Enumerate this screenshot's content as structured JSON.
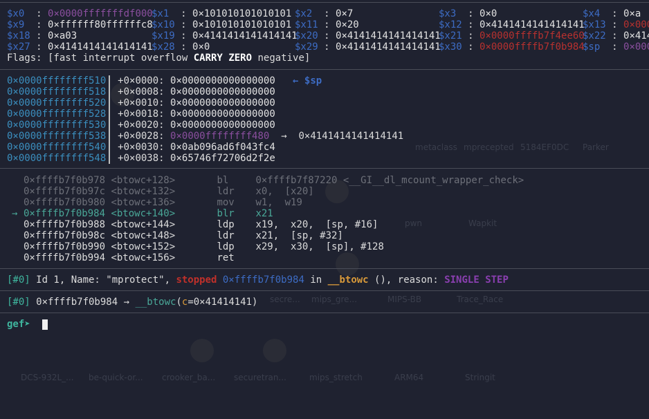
{
  "background_labels": [
    "metaclass",
    "mprecepted",
    "5184EF0DC",
    "Parker",
    "pwn",
    "Wapkit",
    "secre...",
    "mips_gre...",
    "MIPS-BB",
    "Trace_Race",
    "DCS-932L_...",
    "be-quick-or...",
    "crooker_ba...",
    "securetran...",
    "mips_stretch",
    "ARM64",
    "Stringit"
  ],
  "registers": [
    [
      {
        "name": "$x0",
        "value": "0×0000fffffffdf000",
        "color": "purple"
      },
      {
        "name": "$x1",
        "value": "0×101010101010101",
        "color": "white"
      },
      {
        "name": "$x2",
        "value": "0×7",
        "color": "white"
      },
      {
        "name": "$x3",
        "value": "0×0",
        "color": "white"
      },
      {
        "name": "$x4",
        "value": "0×a",
        "color": "white"
      }
    ],
    [
      {
        "name": "$x9",
        "value": "0×ffffff80ffffffc8",
        "color": "white"
      },
      {
        "name": "$x10",
        "value": "0×101010101010101",
        "color": "white"
      },
      {
        "name": "$x11",
        "value": "0×20",
        "color": "white"
      },
      {
        "name": "$x12",
        "value": "0×4141414141414141",
        "color": "white"
      },
      {
        "name": "$x13",
        "value": "0×000",
        "color": "red"
      }
    ],
    [
      {
        "name": "$x18",
        "value": "0×a03",
        "color": "white"
      },
      {
        "name": "$x19",
        "value": "0×4141414141414141",
        "color": "white"
      },
      {
        "name": "$x20",
        "value": "0×4141414141414141",
        "color": "white"
      },
      {
        "name": "$x21",
        "value": "0×0000ffffb7f4ee60",
        "color": "red"
      },
      {
        "name": "$x22",
        "value": "0×414",
        "color": "white"
      }
    ],
    [
      {
        "name": "$x27",
        "value": "0×4141414141414141",
        "color": "white"
      },
      {
        "name": "$x28",
        "value": "0×0",
        "color": "white"
      },
      {
        "name": "$x29",
        "value": "0×4141414141414141",
        "color": "white"
      },
      {
        "name": "$x30",
        "value": "0×0000ffffb7f0b984",
        "color": "red"
      },
      {
        "name": "$sp",
        "value": "0×000",
        "color": "purple"
      }
    ]
  ],
  "flags": {
    "prefix": "Flags: [fast interrupt overflow ",
    "carry": "CARRY",
    "zero": "ZERO",
    "suffix": " negative]"
  },
  "stack": [
    {
      "addr": "0×0000ffffffff510",
      "offset": "+0×0000:",
      "value": "0×0000000000000000",
      "value_color": "white",
      "annotation": "← $sp",
      "deref": ""
    },
    {
      "addr": "0×0000ffffffff518",
      "offset": "+0×0008:",
      "value": "0×0000000000000000",
      "value_color": "white",
      "annotation": "",
      "deref": ""
    },
    {
      "addr": "0×0000ffffffff520",
      "offset": "+0×0010:",
      "value": "0×0000000000000000",
      "value_color": "white",
      "annotation": "",
      "deref": ""
    },
    {
      "addr": "0×0000ffffffff528",
      "offset": "+0×0018:",
      "value": "0×0000000000000000",
      "value_color": "white",
      "annotation": "",
      "deref": ""
    },
    {
      "addr": "0×0000ffffffff530",
      "offset": "+0×0020:",
      "value": "0×0000000000000000",
      "value_color": "white",
      "annotation": "",
      "deref": ""
    },
    {
      "addr": "0×0000ffffffff538",
      "offset": "+0×0028:",
      "value": "0×0000ffffffff480",
      "value_color": "purple",
      "annotation": "",
      "deref": "→  0×4141414141414141"
    },
    {
      "addr": "0×0000ffffffff540",
      "offset": "+0×0030:",
      "value": "0×0ab096ad6f043fc4",
      "value_color": "white",
      "annotation": "",
      "deref": ""
    },
    {
      "addr": "0×0000ffffffff548",
      "offset": "+0×0038:",
      "value": "0×65746f72706d2f2e",
      "value_color": "white",
      "annotation": "",
      "deref": ""
    }
  ],
  "code": [
    {
      "marker": "",
      "addr": "0×ffffb7f0b978",
      "sym": "<btowc+128>",
      "op": "bl",
      "args": "0×ffffb7f87220 <__GI__dl_mcount_wrapper_check>",
      "state": "past"
    },
    {
      "marker": "",
      "addr": "0×ffffb7f0b97c",
      "sym": "<btowc+132>",
      "op": "ldr",
      "args": "x0,  [x20]",
      "state": "past"
    },
    {
      "marker": "",
      "addr": "0×ffffb7f0b980",
      "sym": "<btowc+136>",
      "op": "mov",
      "args": "w1,  w19",
      "state": "past"
    },
    {
      "marker": "→",
      "addr": "0×ffffb7f0b984",
      "sym": "<btowc+140>",
      "op": "blr",
      "args": "x21",
      "state": "current"
    },
    {
      "marker": "",
      "addr": "0×ffffb7f0b988",
      "sym": "<btowc+144>",
      "op": "ldp",
      "args": "x19,  x20,  [sp, #16]",
      "state": "next"
    },
    {
      "marker": "",
      "addr": "0×ffffb7f0b98c",
      "sym": "<btowc+148>",
      "op": "ldr",
      "args": "x21,  [sp, #32]",
      "state": "next"
    },
    {
      "marker": "",
      "addr": "0×ffffb7f0b990",
      "sym": "<btowc+152>",
      "op": "ldp",
      "args": "x29,  x30,  [sp], #128",
      "state": "next"
    },
    {
      "marker": "",
      "addr": "0×ffffb7f0b994",
      "sym": "<btowc+156>",
      "op": "ret",
      "args": "",
      "state": "next"
    }
  ],
  "thread": {
    "id": "[#0]",
    "text1": " Id 1, Name: \"mprotect\", ",
    "status": "stopped",
    "addr": " 0×ffffb7f0b984",
    "in": " in ",
    "func": "__btowc",
    "text2": " (), reason: ",
    "reason": "SINGLE STEP"
  },
  "trace": {
    "id": "[#0]",
    "addr": " 0×ffffb7f0b984 → ",
    "func": "__btowc",
    "open": "(",
    "arg": "c",
    "rest": "=0×41414141)"
  },
  "prompt": {
    "text": "gef➤ "
  },
  "colors": {
    "background": "#1f2230",
    "register": "#3d6cc4",
    "pointer_heap": "#8b4f9f",
    "pointer_code": "#b8312f",
    "current_line": "#4aa898",
    "prompt": "#3fb59e"
  }
}
